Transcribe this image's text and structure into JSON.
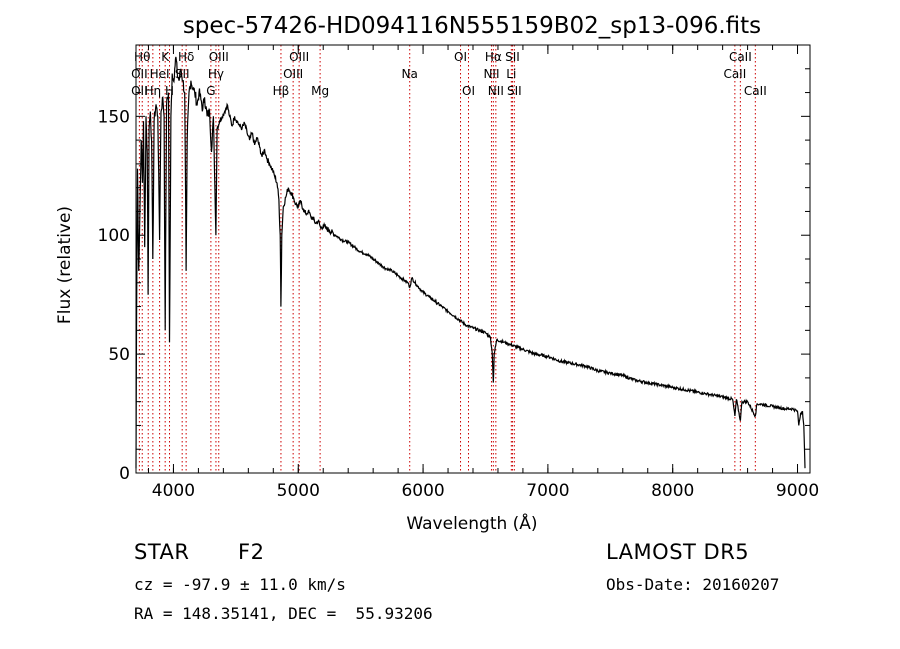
{
  "chart_data": {
    "type": "line",
    "title": "spec-57426-HD094116N555159B02_sp13-096.fits",
    "xlabel": "Wavelength (Å)",
    "ylabel": "Flux (relative)",
    "xlim": [
      3700,
      9100
    ],
    "ylim": [
      0,
      180
    ],
    "xticks": [
      4000,
      5000,
      6000,
      7000,
      8000,
      9000
    ],
    "yticks": [
      0,
      50,
      100,
      150
    ],
    "grid": false,
    "spectrum": [
      [
        3700,
        2
      ],
      [
        3704,
        60
      ],
      [
        3712,
        128
      ],
      [
        3722,
        85
      ],
      [
        3732,
        112
      ],
      [
        3742,
        140
      ],
      [
        3752,
        122
      ],
      [
        3760,
        148
      ],
      [
        3770,
        95
      ],
      [
        3780,
        150
      ],
      [
        3790,
        135
      ],
      [
        3797,
        75
      ],
      [
        3805,
        145
      ],
      [
        3815,
        152
      ],
      [
        3825,
        140
      ],
      [
        3835,
        90
      ],
      [
        3845,
        148
      ],
      [
        3860,
        155
      ],
      [
        3875,
        150
      ],
      [
        3889,
        98
      ],
      [
        3900,
        152
      ],
      [
        3915,
        158
      ],
      [
        3925,
        150
      ],
      [
        3933.7,
        60
      ],
      [
        3945,
        155
      ],
      [
        3960,
        160
      ],
      [
        3968.5,
        55
      ],
      [
        3980,
        150
      ],
      [
        3990,
        168
      ],
      [
        4000,
        165
      ],
      [
        4010,
        170
      ],
      [
        4020,
        175
      ],
      [
        4030,
        168
      ],
      [
        4045,
        165
      ],
      [
        4060,
        170
      ],
      [
        4075,
        165
      ],
      [
        4090,
        160
      ],
      [
        4101.7,
        85
      ],
      [
        4110,
        140
      ],
      [
        4125,
        160
      ],
      [
        4140,
        165
      ],
      [
        4155,
        162
      ],
      [
        4170,
        160
      ],
      [
        4190,
        155
      ],
      [
        4205,
        160
      ],
      [
        4220,
        157
      ],
      [
        4235,
        153
      ],
      [
        4250,
        158
      ],
      [
        4270,
        150
      ],
      [
        4290,
        152
      ],
      [
        4305,
        135
      ],
      [
        4320,
        150
      ],
      [
        4340.5,
        100
      ],
      [
        4350,
        145
      ],
      [
        4370,
        148
      ],
      [
        4390,
        150
      ],
      [
        4410,
        152
      ],
      [
        4430,
        155
      ],
      [
        4450,
        150
      ],
      [
        4470,
        146
      ],
      [
        4490,
        150
      ],
      [
        4510,
        148
      ],
      [
        4530,
        146
      ],
      [
        4550,
        145
      ],
      [
        4570,
        147
      ],
      [
        4590,
        143
      ],
      [
        4610,
        140
      ],
      [
        4630,
        143
      ],
      [
        4650,
        138
      ],
      [
        4670,
        141
      ],
      [
        4690,
        137
      ],
      [
        4710,
        133
      ],
      [
        4730,
        136
      ],
      [
        4750,
        132
      ],
      [
        4770,
        130
      ],
      [
        4790,
        128
      ],
      [
        4810,
        125
      ],
      [
        4830,
        122
      ],
      [
        4845,
        115
      ],
      [
        4855,
        100
      ],
      [
        4861.3,
        70
      ],
      [
        4868,
        100
      ],
      [
        4880,
        112
      ],
      [
        4900,
        116
      ],
      [
        4920,
        120
      ],
      [
        4940,
        118
      ],
      [
        4960,
        116
      ],
      [
        4980,
        113
      ],
      [
        5000,
        112
      ],
      [
        5020,
        114
      ],
      [
        5040,
        111
      ],
      [
        5060,
        109
      ],
      [
        5080,
        110
      ],
      [
        5100,
        108
      ],
      [
        5120,
        107
      ],
      [
        5140,
        105
      ],
      [
        5160,
        106
      ],
      [
        5180,
        103
      ],
      [
        5200,
        104
      ],
      [
        5220,
        103
      ],
      [
        5250,
        102
      ],
      [
        5300,
        100
      ],
      [
        5350,
        98
      ],
      [
        5400,
        97
      ],
      [
        5450,
        95
      ],
      [
        5500,
        93
      ],
      [
        5550,
        92
      ],
      [
        5600,
        90
      ],
      [
        5650,
        88
      ],
      [
        5700,
        86
      ],
      [
        5750,
        85
      ],
      [
        5800,
        83
      ],
      [
        5850,
        81
      ],
      [
        5880,
        80
      ],
      [
        5893,
        78
      ],
      [
        5910,
        82
      ],
      [
        5950,
        79
      ],
      [
        6000,
        76
      ],
      [
        6050,
        74
      ],
      [
        6100,
        72
      ],
      [
        6150,
        70
      ],
      [
        6200,
        68
      ],
      [
        6250,
        66
      ],
      [
        6300,
        64
      ],
      [
        6350,
        62
      ],
      [
        6400,
        61
      ],
      [
        6450,
        60
      ],
      [
        6500,
        59
      ],
      [
        6540,
        57
      ],
      [
        6555,
        50
      ],
      [
        6562.8,
        38
      ],
      [
        6570,
        50
      ],
      [
        6590,
        56
      ],
      [
        6650,
        55
      ],
      [
        6700,
        54
      ],
      [
        6800,
        52
      ],
      [
        6900,
        50
      ],
      [
        7000,
        49
      ],
      [
        7100,
        47
      ],
      [
        7200,
        46
      ],
      [
        7300,
        45
      ],
      [
        7400,
        43
      ],
      [
        7500,
        42
      ],
      [
        7600,
        41
      ],
      [
        7700,
        39
      ],
      [
        7800,
        38
      ],
      [
        7900,
        37
      ],
      [
        8000,
        36
      ],
      [
        8100,
        35
      ],
      [
        8200,
        34
      ],
      [
        8300,
        33
      ],
      [
        8400,
        32
      ],
      [
        8480,
        31
      ],
      [
        8498,
        24
      ],
      [
        8510,
        31
      ],
      [
        8542,
        22
      ],
      [
        8555,
        30
      ],
      [
        8600,
        30
      ],
      [
        8662,
        24
      ],
      [
        8675,
        29
      ],
      [
        8700,
        29
      ],
      [
        8800,
        28
      ],
      [
        8900,
        27
      ],
      [
        8960,
        27
      ],
      [
        9000,
        26
      ],
      [
        9010,
        20
      ],
      [
        9025,
        25
      ],
      [
        9040,
        26
      ],
      [
        9050,
        20
      ],
      [
        9060,
        2
      ]
    ],
    "lines": [
      {
        "x": 3727,
        "labels": [
          {
            "text": "OII",
            "row": 1
          },
          {
            "text": "OII",
            "row": 2
          }
        ]
      },
      {
        "x": 3750,
        "labels": [
          {
            "text": "Hθ",
            "row": 0
          }
        ]
      },
      {
        "x": 3798,
        "labels": []
      },
      {
        "x": 3835,
        "labels": [
          {
            "text": "Hη",
            "row": 2
          }
        ]
      },
      {
        "x": 3889,
        "labels": [
          {
            "text": "HeI",
            "row": 1
          }
        ]
      },
      {
        "x": 3933.7,
        "labels": [
          {
            "text": "K",
            "row": 0
          }
        ]
      },
      {
        "x": 3968.5,
        "labels": [
          {
            "text": "H",
            "row": 2
          }
        ]
      },
      {
        "x": 4070,
        "labels": [
          {
            "text": "SII",
            "row": 1
          }
        ]
      },
      {
        "x": 4101.7,
        "labels": [
          {
            "text": "Hδ",
            "row": 0
          }
        ]
      },
      {
        "x": 4300,
        "labels": [
          {
            "text": "G",
            "row": 2
          }
        ]
      },
      {
        "x": 4340.5,
        "labels": [
          {
            "text": "Hγ",
            "row": 1
          }
        ]
      },
      {
        "x": 4363,
        "labels": [
          {
            "text": "OIII",
            "row": 0
          }
        ]
      },
      {
        "x": 4861.3,
        "labels": [
          {
            "text": "Hβ",
            "row": 2
          }
        ]
      },
      {
        "x": 4959,
        "labels": [
          {
            "text": "OIII",
            "row": 1
          }
        ]
      },
      {
        "x": 5007,
        "labels": [
          {
            "text": "OIII",
            "row": 0
          }
        ]
      },
      {
        "x": 5175,
        "labels": [
          {
            "text": "Mg",
            "row": 2
          }
        ]
      },
      {
        "x": 5893,
        "labels": [
          {
            "text": "Na",
            "row": 1
          }
        ]
      },
      {
        "x": 6300,
        "labels": [
          {
            "text": "OI",
            "row": 0
          }
        ]
      },
      {
        "x": 6364,
        "labels": [
          {
            "text": "OI",
            "row": 2
          }
        ]
      },
      {
        "x": 6548,
        "labels": [
          {
            "text": "NII",
            "row": 1
          }
        ]
      },
      {
        "x": 6562.8,
        "labels": [
          {
            "text": "Hα",
            "row": 0
          }
        ]
      },
      {
        "x": 6583,
        "labels": [
          {
            "text": "NII",
            "row": 2
          }
        ]
      },
      {
        "x": 6707,
        "labels": [
          {
            "text": "Li",
            "row": 1
          }
        ]
      },
      {
        "x": 6716,
        "labels": [
          {
            "text": "SII",
            "row": 0
          }
        ]
      },
      {
        "x": 6731,
        "labels": [
          {
            "text": "SII",
            "row": 2
          }
        ]
      },
      {
        "x": 8498,
        "labels": [
          {
            "text": "CaII",
            "row": 1
          }
        ]
      },
      {
        "x": 8542,
        "labels": [
          {
            "text": "CaII",
            "row": 0
          }
        ]
      },
      {
        "x": 8662,
        "labels": [
          {
            "text": "CaII",
            "row": 2
          }
        ]
      }
    ]
  },
  "info": {
    "object_class": "STAR",
    "subclass": "F2",
    "survey": "LAMOST DR5",
    "cz": "cz = -97.9 ± 11.0 km/s",
    "obs_date": "Obs-Date: 20160207",
    "coords": "RA = 148.35141, DEC =  55.93206"
  }
}
